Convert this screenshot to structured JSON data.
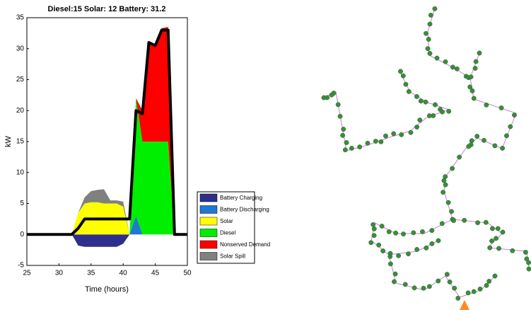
{
  "chart_data": {
    "type": "stacked-area",
    "title": "Diesel:15 Solar: 12 Battery: 31.2",
    "xlabel": "Time (hours)",
    "ylabel": "kW",
    "x": [
      25,
      26,
      27,
      28,
      29,
      30,
      31,
      32,
      33,
      34,
      35,
      36,
      37,
      38,
      39,
      40,
      41,
      42,
      43,
      44,
      45,
      46,
      47,
      48,
      49,
      50
    ],
    "xlim": [
      25,
      50
    ],
    "xticks": [
      25,
      30,
      35,
      40,
      45,
      50
    ],
    "ylim": [
      -5,
      35
    ],
    "yticks": [
      -5,
      0,
      5,
      10,
      15,
      20,
      25,
      30,
      35
    ],
    "series": [
      {
        "name": "Battery Charging",
        "color": "#2e2e8c",
        "values": [
          0,
          0,
          0,
          0,
          0,
          0,
          0,
          0,
          -1.8,
          -2,
          -2,
          -2,
          -2,
          -2,
          -2,
          -1.5,
          0,
          0,
          0,
          0,
          0,
          0,
          0,
          0,
          0,
          0
        ]
      },
      {
        "name": "Battery Discharging",
        "color": "#1f78d1",
        "values": [
          0,
          0,
          0,
          0,
          0,
          0,
          0,
          0,
          0,
          0,
          0,
          0,
          0,
          0,
          0,
          0,
          0,
          3,
          0,
          0,
          0,
          0,
          0,
          0,
          0,
          0
        ]
      },
      {
        "name": "Solar",
        "color": "#ffff00",
        "values": [
          0,
          0,
          0,
          0,
          0,
          0,
          0,
          0,
          3.5,
          5,
          5.2,
          5.2,
          5,
          5,
          5,
          4.5,
          0,
          0,
          0,
          0,
          0,
          0,
          0,
          0,
          0,
          0
        ]
      },
      {
        "name": "Diesel",
        "color": "#00ee00",
        "values": [
          0,
          0,
          0,
          0,
          0,
          0,
          0,
          0,
          0,
          0,
          0,
          0,
          0,
          0,
          0,
          0,
          0,
          19,
          15,
          15,
          15,
          15,
          15,
          0,
          0,
          0
        ]
      },
      {
        "name": "Nonserved Demand",
        "color": "#ff0000",
        "values": [
          0,
          0,
          0,
          0,
          0,
          0,
          0,
          0,
          0,
          0,
          0,
          0,
          0,
          0,
          0,
          0,
          0,
          0,
          5,
          16,
          15.5,
          18.3,
          18.5,
          0,
          0,
          0
        ]
      },
      {
        "name": "Solar Spill",
        "color": "#808080",
        "values": [
          0,
          0,
          0,
          0,
          0,
          0,
          0,
          0,
          0,
          1,
          1.8,
          2,
          2.3,
          0.5,
          0.5,
          0.8,
          0,
          0,
          0,
          0,
          0,
          0,
          0,
          0,
          0,
          0
        ]
      }
    ],
    "demand_line": {
      "color": "#000000",
      "values": [
        0,
        0,
        0,
        0,
        0,
        0,
        0,
        0,
        1,
        2.5,
        2.5,
        2.5,
        2.5,
        2.5,
        2.5,
        2.5,
        2.5,
        20,
        19.5,
        31,
        30.5,
        33,
        33,
        0,
        0,
        0
      ]
    }
  }
}
